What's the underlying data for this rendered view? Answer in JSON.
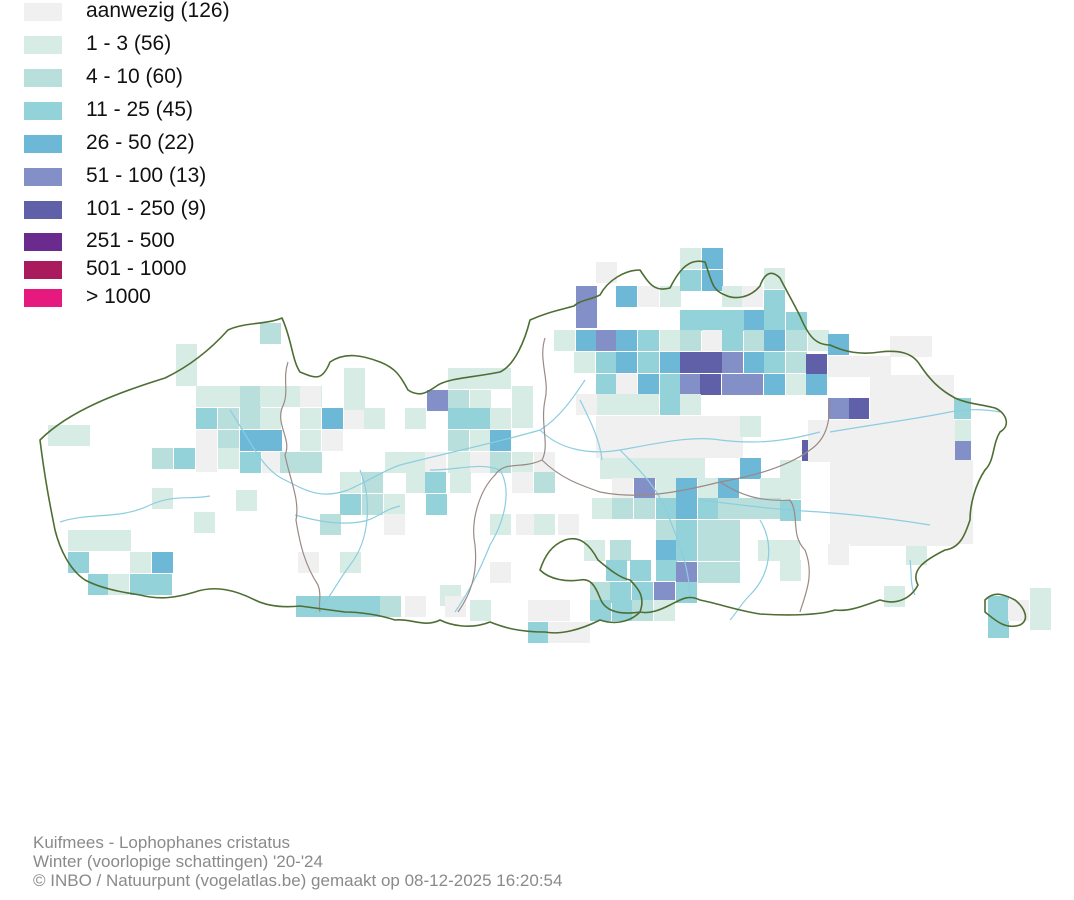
{
  "legend": {
    "items": [
      {
        "label": "aanwezig (126)",
        "color": "#f0f0f0"
      },
      {
        "label": "1 - 3 (56)",
        "color": "#d8ece6"
      },
      {
        "label": "4 - 10 (60)",
        "color": "#b8dfdc"
      },
      {
        "label": "11 - 25 (45)",
        "color": "#93d2d8"
      },
      {
        "label": "26 - 50 (22)",
        "color": "#6db7d7"
      },
      {
        "label": "51 - 100 (13)",
        "color": "#8390c8"
      },
      {
        "label": "101 - 250 (9)",
        "color": "#6060a8"
      },
      {
        "label": "251 - 500",
        "color": "#6a2a8e"
      },
      {
        "label": "501 - 1000",
        "color": "#aa1b5e"
      },
      {
        "label": "> 1000",
        "color": "#e6197e"
      }
    ]
  },
  "colors": {
    "border": "#4e6e34",
    "province_border": "#9a8a86",
    "river": "#8ccde0",
    "credits_text": "#8a8a8a"
  },
  "credits": {
    "species": "Kuifmees - Lophophanes cristatus",
    "season": "Winter (voorlopige schattingen) '20-'24",
    "source": "© INBO / Natuurpunt (vogelatlas.be) gemaakt op 08-12-2025 16:20:54"
  }
}
